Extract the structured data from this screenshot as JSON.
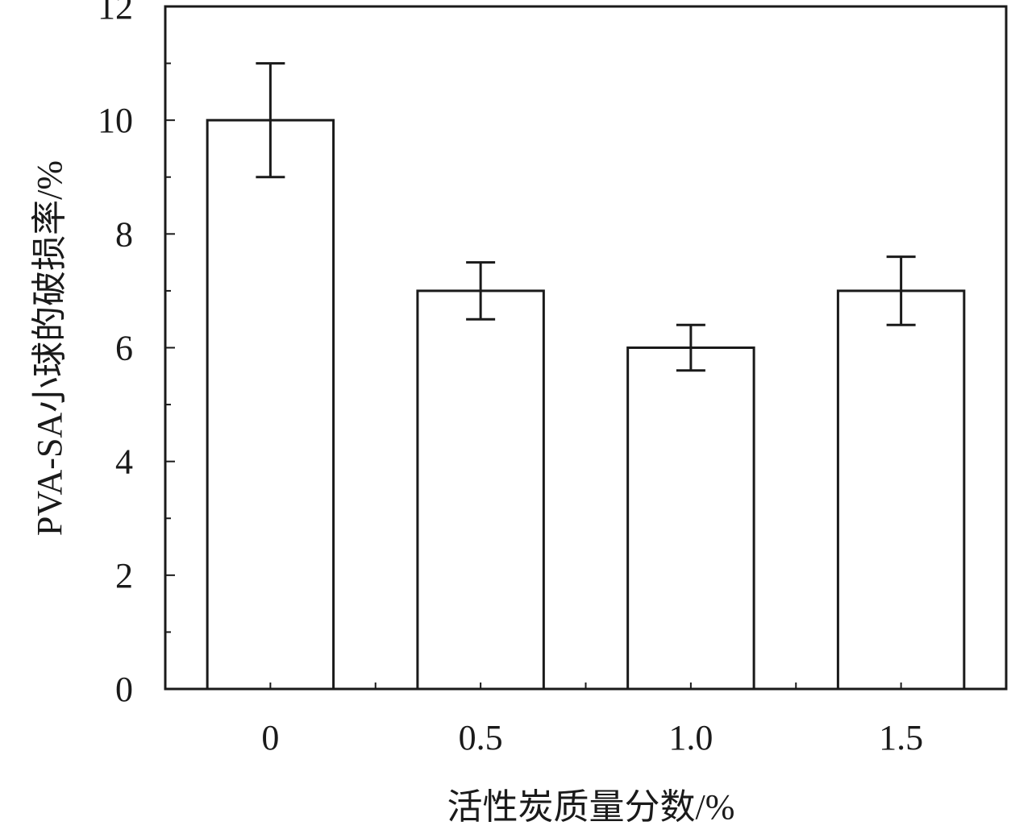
{
  "chart_data": {
    "type": "bar",
    "categories": [
      "0",
      "0.5",
      "1.0",
      "1.5"
    ],
    "series": [
      {
        "values": [
          10,
          7,
          6,
          7
        ],
        "error_low": [
          9,
          6.5,
          5.6,
          6.4
        ],
        "error_high": [
          11,
          7.5,
          6.4,
          7.6
        ]
      }
    ],
    "xlabel": "活性炭质量分数/%",
    "ylabel": "PVA-SA小球的破损率/%",
    "ylim": [
      0,
      12
    ],
    "y_ticks": [
      "0",
      "2",
      "4",
      "6",
      "8",
      "10",
      "12"
    ],
    "grid": false,
    "bar_fill": "#ffffff",
    "stroke_color": "#1a1a1a"
  }
}
